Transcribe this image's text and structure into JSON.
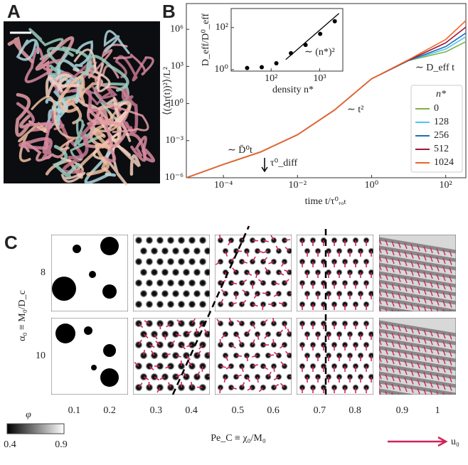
{
  "panels": {
    "a": "A",
    "b": "B",
    "c": "C"
  },
  "chart_data": [
    {
      "type": "line",
      "x_label": "time t/τ⁰ᵣₒₜ",
      "y_label": "⟨(Δr(t))²⟩/L²",
      "log_x": true,
      "log_y": true,
      "x": [
        1e-05,
        0.0001,
        0.001,
        0.01,
        0.1,
        1,
        10,
        100,
        350
      ],
      "series": [
        {
          "name": "0",
          "color": "#7cb342",
          "values": [
            1e-06,
            1.2e-05,
            0.00012,
            0.003,
            0.3,
            100,
            3000,
            15000,
            100000
          ]
        },
        {
          "name": "128",
          "color": "#4fc3f7",
          "values": [
            1e-06,
            1.2e-05,
            0.00012,
            0.003,
            0.3,
            100,
            3000,
            25000,
            250000
          ]
        },
        {
          "name": "256",
          "color": "#1f6fb4",
          "values": [
            1e-06,
            1.2e-05,
            0.00012,
            0.003,
            0.3,
            100,
            3000,
            40000,
            500000
          ]
        },
        {
          "name": "512",
          "color": "#a3163a",
          "values": [
            1e-06,
            1.2e-05,
            0.00012,
            0.003,
            0.3,
            100,
            3200,
            80000,
            1500000
          ]
        },
        {
          "name": "1024",
          "color": "#f26522",
          "values": [
            1e-06,
            1.2e-05,
            0.00012,
            0.003,
            0.3,
            100,
            3500,
            150000,
            5000000
          ]
        }
      ],
      "legend_title": "n*",
      "legend": "right",
      "annotations": [
        "∼ D̄⁰t",
        "∼ t²",
        "∼ D_eff t",
        "τ⁰_diff"
      ],
      "xlim": [
        1e-05,
        350
      ],
      "ylim": [
        1e-06,
        120000000.0
      ],
      "xticks": [
        {
          "value": 0.0001,
          "label": "10⁻⁴"
        },
        {
          "value": 0.01,
          "label": "10⁻²"
        },
        {
          "value": 1,
          "label": "10⁰"
        },
        {
          "value": 100,
          "label": "10²"
        }
      ],
      "yticks": [
        {
          "value": 1e-06,
          "label": "10⁻⁶"
        },
        {
          "value": 0.001,
          "label": "10⁻³"
        },
        {
          "value": 1,
          "label": "10⁰"
        },
        {
          "value": 1000,
          "label": "10³"
        },
        {
          "value": 1000000.0,
          "label": "10⁶"
        }
      ]
    },
    {
      "type": "scatter",
      "x_label": "density n*",
      "y_label": "D_eff/D⁰_eff",
      "log_x": true,
      "log_y": true,
      "x": [
        32,
        64,
        128,
        256,
        512,
        1024,
        2048
      ],
      "values": [
        1.2,
        1.3,
        2,
        6,
        15,
        50,
        200
      ],
      "color": "#000000",
      "fit_line": {
        "x": [
          200,
          2500
        ],
        "values": [
          3,
          470
        ]
      },
      "annotation": "∼ (n*)²",
      "xlim": [
        15,
        3000
      ],
      "ylim": [
        0.85,
        800
      ],
      "xticks": [
        {
          "value": 100,
          "label": "10²"
        },
        {
          "value": 1000,
          "label": "10³"
        }
      ],
      "yticks": [
        {
          "value": 1,
          "label": "10⁰"
        },
        {
          "value": 100,
          "label": "10²"
        }
      ]
    }
  ],
  "phase_diagram": {
    "x_label": "Pe_C ≡ χ₀/M₀",
    "y_label": "α₀ ≡ M₀/D_c",
    "rows": [
      8,
      10
    ],
    "x_ticks": [
      0.1,
      0.2,
      0.3,
      0.4,
      0.5,
      0.6,
      0.7,
      0.8,
      0.9,
      1
    ],
    "colorbar": {
      "label": "φ",
      "ticks": [
        0.4,
        0.9
      ]
    },
    "arrow_label": "u₀"
  }
}
